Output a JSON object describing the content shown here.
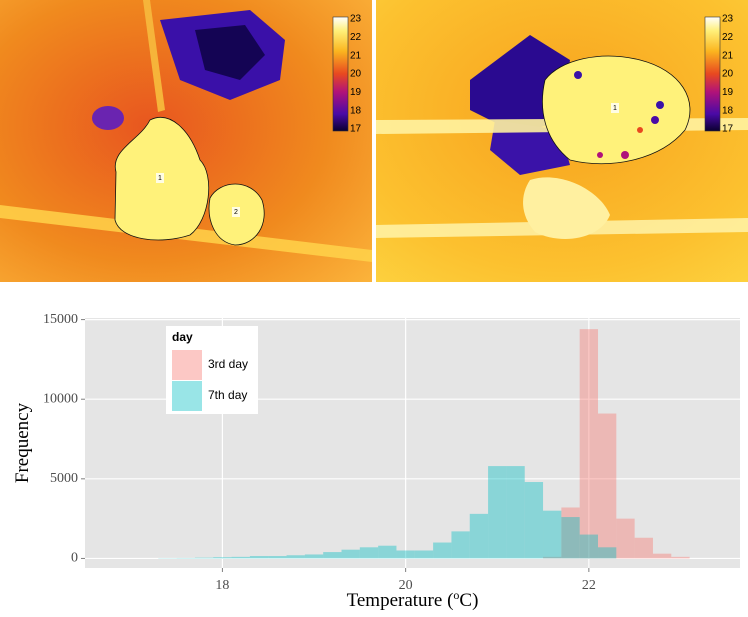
{
  "images": [
    {
      "colorbar_ticks": [
        23,
        22,
        21,
        20,
        19,
        18,
        17
      ],
      "leaf_labels": [
        "1",
        "2"
      ]
    },
    {
      "colorbar_ticks": [
        23,
        22,
        21,
        20,
        19,
        18,
        17
      ],
      "leaf_labels": [
        "1"
      ]
    }
  ],
  "chart_data": {
    "type": "histogram",
    "xlabel": [
      "Temperature (",
      "o",
      "C)"
    ],
    "ylabel": "Frequency",
    "legend_title": "day",
    "legend_position": "top-left",
    "bins": [
      17.1,
      17.3,
      17.5,
      17.7,
      17.9,
      18.1,
      18.3,
      18.5,
      18.7,
      18.9,
      19.1,
      19.3,
      19.5,
      19.7,
      19.9,
      20.1,
      20.3,
      20.5,
      20.7,
      20.9,
      21.1,
      21.3,
      21.5,
      21.7,
      21.9,
      22.1,
      22.3,
      22.5,
      22.7,
      22.9,
      23.1
    ],
    "series": [
      {
        "name": "3rd day",
        "color": "#F8766D",
        "values": [
          0,
          0,
          0,
          0,
          0,
          0,
          0,
          0,
          0,
          0,
          0,
          0,
          0,
          0,
          0,
          0,
          0,
          0,
          0,
          0,
          0,
          0,
          100,
          3200,
          14400,
          9100,
          2500,
          1300,
          300,
          100
        ]
      },
      {
        "name": "7th day",
        "color": "#00BFC4",
        "values": [
          0,
          20,
          30,
          50,
          80,
          100,
          150,
          150,
          200,
          250,
          400,
          550,
          700,
          800,
          500,
          500,
          1000,
          1700,
          2800,
          5800,
          5800,
          4800,
          3000,
          2600,
          1500,
          700,
          0,
          0,
          0,
          0
        ]
      }
    ],
    "xlim": [
      16.5,
      23.65
    ],
    "ylim": [
      -600,
      15100
    ],
    "xticks": [
      18,
      20,
      22
    ],
    "yticks": [
      0,
      5000,
      10000,
      15000
    ],
    "grid": true,
    "bar_opacity": 0.4
  }
}
